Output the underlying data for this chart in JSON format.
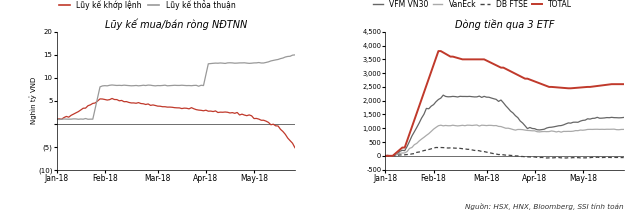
{
  "chart1": {
    "title": "Lũy kế mua/bán ròng NĐTNN",
    "ylabel": "Nghìn tỷ VND",
    "ylim": [
      -10,
      20
    ],
    "yticks": [
      -10,
      -5,
      0,
      5,
      10,
      15,
      20
    ],
    "ytick_labels": [
      "(10)",
      "(5)",
      "",
      "5",
      "10",
      "15",
      "20"
    ],
    "legend": [
      "Lũy kế khớp lệnh",
      "Lũy kế thỏa thuận"
    ],
    "line1_color": "#c0392b",
    "line2_color": "#999999",
    "x_ticks": [
      "Jan-18",
      "Feb-18",
      "Mar-18",
      "Apr-18",
      "May-18"
    ]
  },
  "chart2": {
    "title": "Dòng tiền qua 3 ETF",
    "ylim": [
      -500,
      4500
    ],
    "yticks": [
      -500,
      0,
      500,
      1000,
      1500,
      2000,
      2500,
      3000,
      3500,
      4000,
      4500
    ],
    "ytick_labels": [
      "-500",
      "0",
      "500",
      "1,000",
      "1,500",
      "2,000",
      "2,500",
      "3,000",
      "3,500",
      "4,000",
      "4,500"
    ],
    "legend": [
      "VFM VN30",
      "VanEck",
      "DB FTSE",
      "TOTAL"
    ],
    "colors": [
      "#666666",
      "#aaaaaa",
      "#444444",
      "#c0392b"
    ],
    "x_ticks": [
      "Jan-18",
      "Feb-18",
      "Mar-18",
      "Apr-18",
      "May-18"
    ],
    "source": "Nguồn: HSX, HNX, Bloomberg, SSI tính toán"
  }
}
